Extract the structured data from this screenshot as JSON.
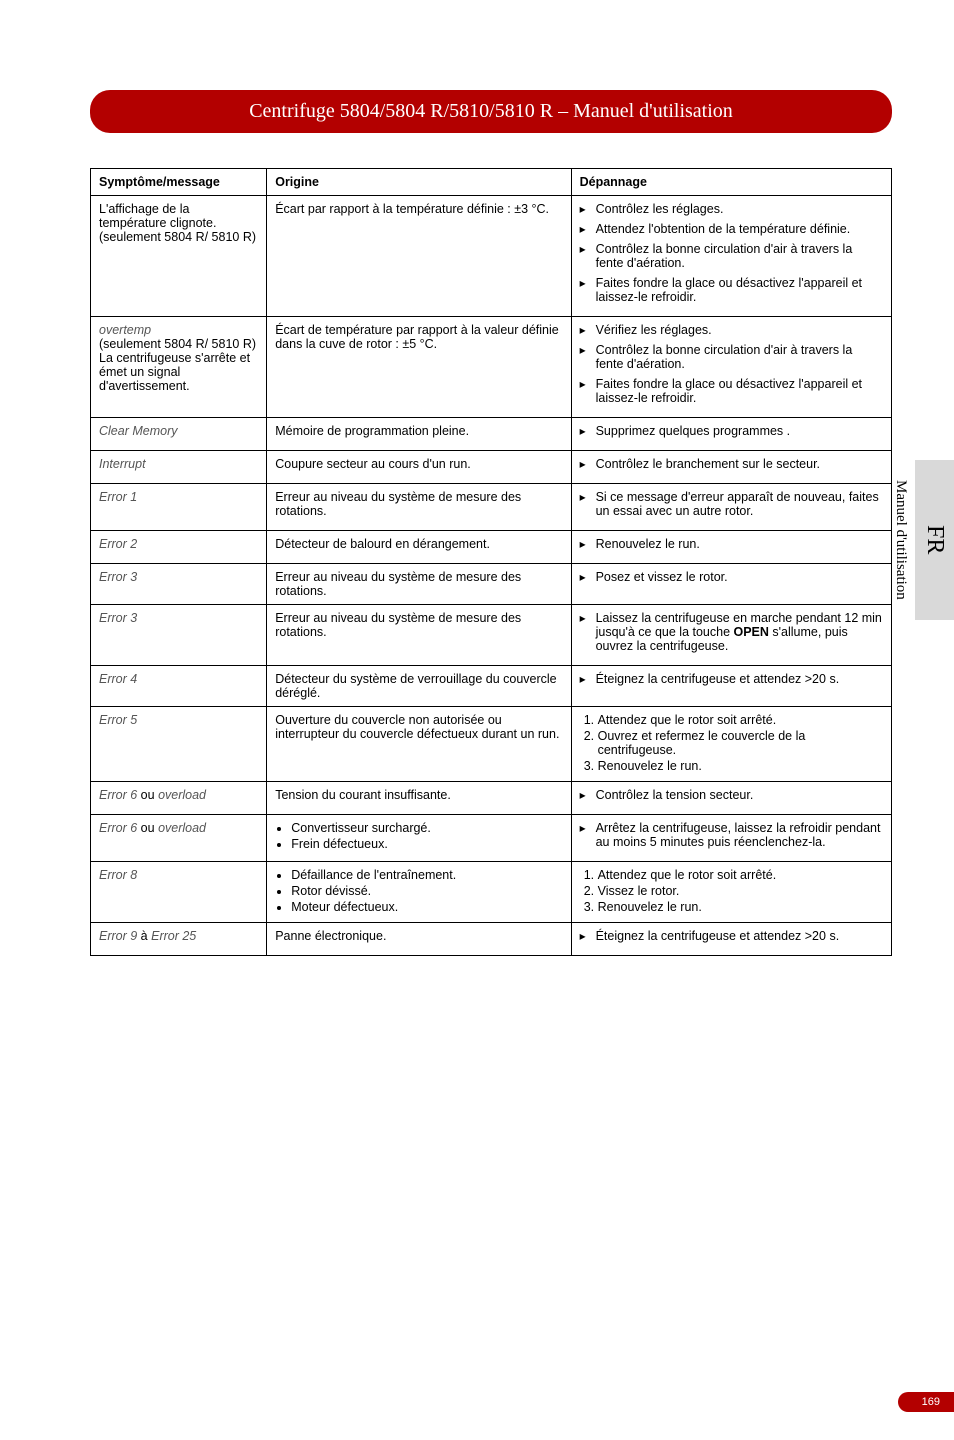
{
  "title_bar": "Centrifuge 5804/5804 R/5810/5810 R  –  Manuel d'utilisation",
  "side_lang": "FR",
  "side_label": "Manuel d'utilisation",
  "page_number": "169",
  "headers": {
    "symptom": "Symptôme/message",
    "cause": "Origine",
    "remedy": "Dépannage"
  },
  "colors": {
    "bar_bg": "#b30000",
    "bar_text": "#ffffff",
    "tab_bg": "#d9d9d9"
  },
  "rows": [
    {
      "symptom_lines": [
        "L'affichage de la température clignote.",
        "(seulement 5804 R/ 5810 R)"
      ],
      "cause_text": "Écart par rapport à la température définie : ±3 °C.",
      "remedy_arrows": [
        "Contrôlez les réglages.",
        "Attendez l'obtention de la température définie.",
        "Contrôlez la bonne circulation d'air à travers la fente d'aération.",
        "Faites fondre la glace ou désactivez l'appareil et laissez-le refroidir."
      ]
    },
    {
      "symptom_em": "overtemp",
      "symptom_lines": [
        "(seulement 5804 R/ 5810 R)",
        "La centrifugeuse s'arrête et émet un signal d'avertissement."
      ],
      "cause_text": "Écart de température par rapport à la valeur définie dans la cuve de rotor : ±5 °C.",
      "remedy_arrows": [
        "Vérifiez les réglages.",
        "Contrôlez la bonne circulation d'air à travers la fente d'aération.",
        "Faites fondre la glace ou désactivez l'appareil et laissez-le refroidir."
      ]
    },
    {
      "symptom_em": "Clear Memory",
      "cause_text": "Mémoire de programmation pleine.",
      "remedy_arrows": [
        "Supprimez quelques programmes ."
      ]
    },
    {
      "symptom_em": "Interrupt",
      "cause_text": "Coupure secteur au cours d'un run.",
      "remedy_arrows": [
        "Contrôlez le branchement sur le secteur."
      ]
    },
    {
      "symptom_em": "Error 1",
      "cause_text": "Erreur au niveau du système de mesure des rotations.",
      "remedy_arrows": [
        "Si ce message d'erreur apparaît de nouveau, faites un essai avec un autre rotor."
      ]
    },
    {
      "symptom_em": "Error 2",
      "cause_text": "Détecteur de balourd en dérangement.",
      "remedy_arrows": [
        "Renouvelez le run."
      ]
    },
    {
      "symptom_em": "Error 3",
      "cause_text": "Erreur au niveau du système de mesure des rotations.",
      "remedy_arrows": [
        "Posez et vissez le rotor."
      ]
    },
    {
      "symptom_em": "Error 3",
      "cause_text": "Erreur au niveau du système de mesure des rotations.",
      "remedy_arrows_html": [
        "Laissez la centrifugeuse en marche pendant 12 min jusqu'à ce que la touche <b>OPEN</b> s'allume, puis ouvrez la centrifugeuse."
      ]
    },
    {
      "symptom_em": "Error 4",
      "cause_text": "Détecteur du système de verrouillage du couvercle déréglé.",
      "remedy_arrows": [
        "Éteignez la centrifugeuse et attendez >20 s."
      ]
    },
    {
      "symptom_em": "Error 5",
      "cause_text": "Ouverture du couvercle non autorisée ou interrupteur du couvercle défectueux durant un run.",
      "remedy_nums": [
        "Attendez que le rotor soit arrêté.",
        "Ouvrez et refermez le couvercle de la centrifugeuse.",
        "Renouvelez le run."
      ]
    },
    {
      "symptom_em_parts": [
        "Error 6",
        " ou ",
        "overload"
      ],
      "cause_text": "Tension du courant insuffisante.",
      "remedy_arrows": [
        "Contrôlez la tension secteur."
      ]
    },
    {
      "symptom_em_parts": [
        "Error 6",
        " ou ",
        "overload"
      ],
      "cause_bullets": [
        "Convertisseur surchargé.",
        "Frein défectueux."
      ],
      "remedy_arrows": [
        "Arrêtez la centrifugeuse, laissez la refroidir pendant au moins 5 minutes puis réenclenchez-la."
      ]
    },
    {
      "symptom_em": "Error 8",
      "cause_bullets": [
        "Défaillance de l'entraînement.",
        "Rotor dévissé.",
        "Moteur défectueux."
      ],
      "remedy_nums": [
        "Attendez que le rotor soit arrêté.",
        "Vissez le rotor.",
        "Renouvelez le run."
      ]
    },
    {
      "symptom_em_parts": [
        "Error 9",
        " à ",
        "Error 25"
      ],
      "cause_text": "Panne électronique.",
      "remedy_arrows": [
        "Éteignez la centrifugeuse et attendez >20 s."
      ]
    }
  ]
}
